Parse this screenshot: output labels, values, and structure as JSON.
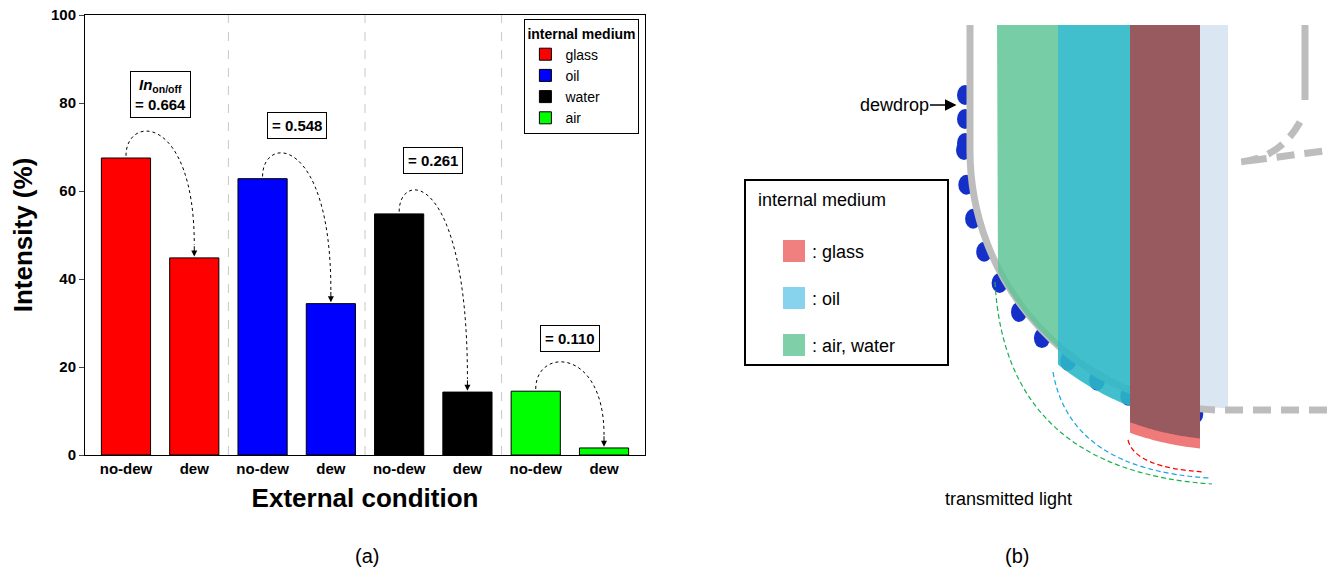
{
  "chart_data": {
    "type": "bar",
    "xlabel": "External condition",
    "ylabel": "Intensity (%)",
    "categories": [
      "no-dew",
      "dew",
      "no-dew",
      "dew",
      "no-dew",
      "dew",
      "no-dew",
      "dew"
    ],
    "series": [
      {
        "name": "glass",
        "color": "#ff0000",
        "values": [
          67.5,
          44.8,
          null,
          null,
          null,
          null,
          null,
          null
        ]
      },
      {
        "name": "oil",
        "color": "#0000ff",
        "values": [
          null,
          null,
          62.8,
          34.4,
          null,
          null,
          null,
          null
        ]
      },
      {
        "name": "water",
        "color": "#000000",
        "values": [
          null,
          null,
          null,
          null,
          54.8,
          14.3,
          null,
          null
        ]
      },
      {
        "name": "air",
        "color": "#00ff00",
        "values": [
          null,
          null,
          null,
          null,
          null,
          null,
          14.5,
          1.6
        ]
      }
    ],
    "annotations": [
      {
        "value": 0.664,
        "label": "= 0.664",
        "prefix": "In",
        "prefix_subscript": "on/off"
      },
      {
        "value": 0.548,
        "label": "= 0.548"
      },
      {
        "value": 0.261,
        "label": "= 0.261"
      },
      {
        "value": 0.11,
        "label": "= 0.110"
      }
    ],
    "ylim": [
      0,
      100
    ],
    "yticks": [
      0,
      20,
      40,
      60,
      80,
      100
    ],
    "grid": false,
    "legend": "upper right",
    "legend_title": "internal medium"
  },
  "panel_labels": [
    "(a)",
    "(b)"
  ],
  "diagram": {
    "dewdrop_label": "dewdrop",
    "legend_title": "internal medium",
    "legend_items": [
      ": glass",
      ": oil",
      ": air, water"
    ],
    "transmitted_label": "transmitted light"
  }
}
